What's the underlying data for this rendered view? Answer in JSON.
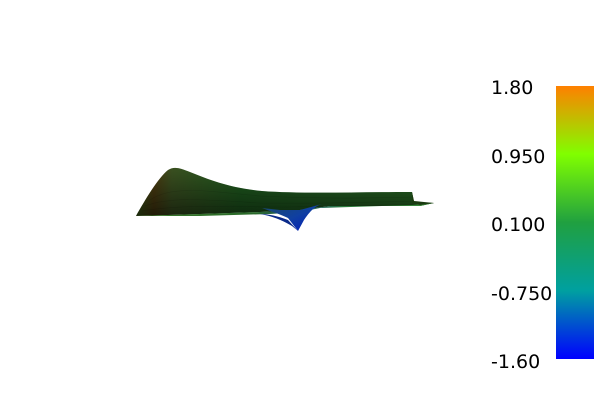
{
  "scalar_bar": {
    "tick_labels": [
      "1.80",
      "0.950",
      "0.100",
      "-0.750",
      "-1.60"
    ],
    "range": [
      -1.6,
      1.8
    ],
    "colors": [
      "#0000ff",
      "#00a0a0",
      "#20a040",
      "#80ff00",
      "#ff8000"
    ]
  },
  "scene": {
    "background": "#ffffff"
  }
}
